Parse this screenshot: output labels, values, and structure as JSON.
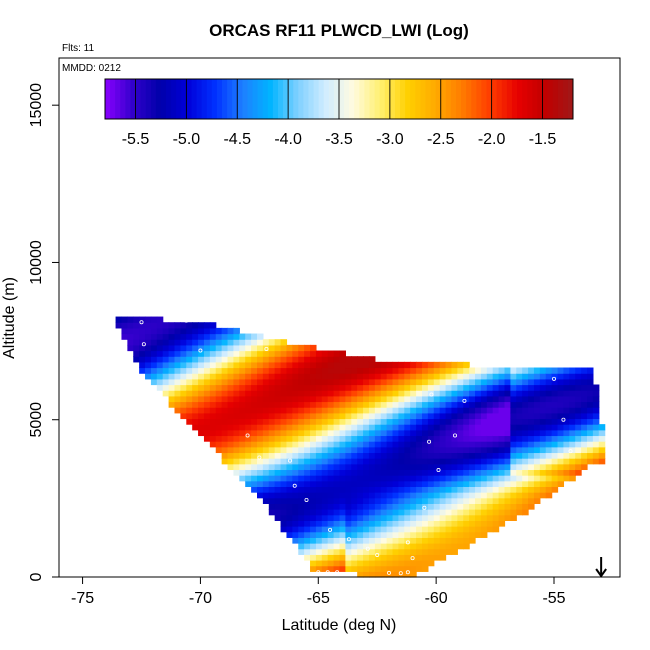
{
  "chart_data": {
    "type": "heatmap",
    "title": "ORCAS RF11 PLWCD_LWI (Log)",
    "flights_label": "Flts: 11",
    "date_label": "MMDD: 0212",
    "xlabel": "Latitude (deg N)",
    "ylabel": "Altitude (m)",
    "xlim": [
      -76,
      -52.2
    ],
    "ylim": [
      0,
      16500
    ],
    "x_ticks": [
      -75,
      -70,
      -65,
      -60,
      -55
    ],
    "x_tick_labels": [
      "-75",
      "-70",
      "-65",
      "-60",
      "-55"
    ],
    "y_ticks": [
      0,
      5000,
      10000,
      15000
    ],
    "y_tick_labels": [
      "0",
      "5000",
      "10000",
      "15000"
    ],
    "colorbar": {
      "range": [
        -5.8,
        -1.2
      ],
      "ticks": [
        -5.5,
        -5.0,
        -4.5,
        -4.0,
        -3.5,
        -3.0,
        -2.5,
        -2.0,
        -1.5
      ],
      "tick_labels": [
        "-5.5",
        "-5.0",
        "-4.5",
        "-4.0",
        "-3.5",
        "-3.0",
        "-2.5",
        "-2.0",
        "-1.5"
      ],
      "colors": [
        "#8a00ff",
        "#3300cc",
        "#0000aa",
        "#0000d9",
        "#0030ff",
        "#1e7fff",
        "#00b4ff",
        "#7fd0ff",
        "#d0ecff",
        "#fffbe0",
        "#fff070",
        "#ffd000",
        "#ffaa00",
        "#ff7a00",
        "#ff3c00",
        "#e60000",
        "#c00000",
        "#a01818"
      ]
    },
    "field": {
      "lat_range": [
        -73.6,
        -53.0
      ],
      "lat_step": 0.25,
      "alt_step": 180,
      "boundary_top": [
        [
          -73.6,
          8200
        ],
        [
          -70,
          8000
        ],
        [
          -66,
          7300
        ],
        [
          -62.5,
          6800
        ],
        [
          -60,
          6700
        ],
        [
          -53.6,
          6500
        ],
        [
          -53.2,
          5800
        ],
        [
          -53.0,
          3800
        ]
      ],
      "boundary_bottom": [
        [
          -73.6,
          8000
        ],
        [
          -72.5,
          6500
        ],
        [
          -70,
          4500
        ],
        [
          -67.5,
          2500
        ],
        [
          -65.2,
          200
        ],
        [
          -61,
          150
        ],
        [
          -60.2,
          500
        ],
        [
          -58.5,
          1200
        ],
        [
          -56,
          2300
        ],
        [
          -53.5,
          3700
        ],
        [
          -53.0,
          3700
        ]
      ],
      "value_range": [
        -5.7,
        -1.4
      ],
      "bands": [
        {
          "value": -2.0,
          "lat0": -73.0,
          "alt0": 2500,
          "tilt": 0.23
        },
        {
          "value": -5.5,
          "lat0": -60.0,
          "alt0": 1500,
          "tilt": 0.12
        }
      ]
    },
    "arrow": {
      "lat": -53.0,
      "direction": "down"
    }
  }
}
